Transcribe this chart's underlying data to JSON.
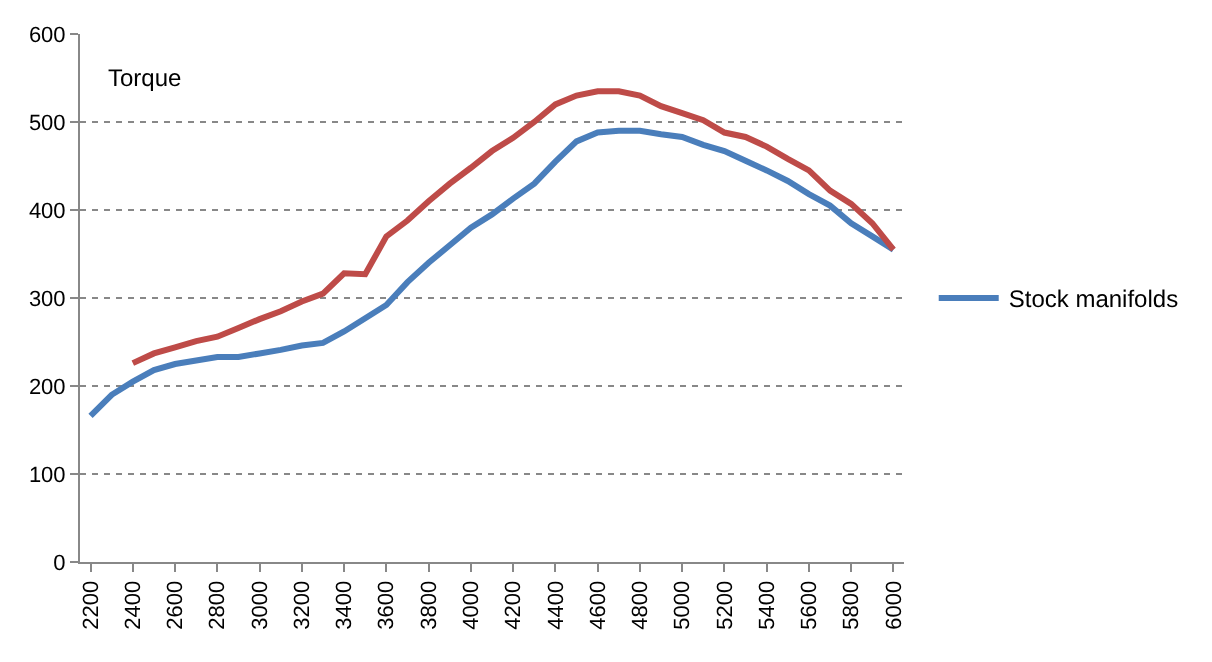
{
  "chart_data": {
    "type": "line",
    "title": "Torque",
    "x": [
      2200,
      2300,
      2400,
      2500,
      2600,
      2700,
      2800,
      2900,
      3000,
      3100,
      3200,
      3300,
      3400,
      3500,
      3600,
      3700,
      3800,
      3900,
      4000,
      4100,
      4200,
      4300,
      4400,
      4500,
      4600,
      4700,
      4800,
      4900,
      5000,
      5100,
      5200,
      5300,
      5400,
      5500,
      5600,
      5700,
      5800,
      5900,
      6000
    ],
    "series": [
      {
        "name": "Stock manifolds",
        "color": "#4a7ebb",
        "values": [
          166,
          190,
          205,
          218,
          225,
          229,
          233,
          233,
          237,
          241,
          246,
          249,
          262,
          277,
          292,
          318,
          340,
          360,
          380,
          395,
          413,
          430,
          455,
          478,
          488,
          490,
          490,
          486,
          483,
          474,
          467,
          456,
          445,
          433,
          418,
          405,
          385,
          370,
          355
        ]
      },
      {
        "color": "#be4b48",
        "values": [
          null,
          null,
          226,
          237,
          244,
          251,
          256,
          266,
          276,
          285,
          296,
          305,
          328,
          327,
          370,
          388,
          410,
          430,
          448,
          467,
          482,
          500,
          520,
          530,
          535,
          535,
          530,
          518,
          510,
          502,
          488,
          483,
          472,
          458,
          445,
          422,
          407,
          385,
          355
        ]
      }
    ],
    "xlim": [
      2150,
      6050
    ],
    "xticks": [
      2200,
      2400,
      2600,
      2800,
      3000,
      3200,
      3400,
      3600,
      3800,
      4000,
      4200,
      4400,
      4600,
      4800,
      5000,
      5200,
      5400,
      5600,
      5800,
      6000
    ],
    "ylim": [
      0,
      600
    ],
    "yticks": [
      0,
      100,
      200,
      300,
      400,
      500,
      600
    ],
    "grid": "y",
    "legend": "right",
    "marker": "none",
    "line_style": "solid"
  }
}
